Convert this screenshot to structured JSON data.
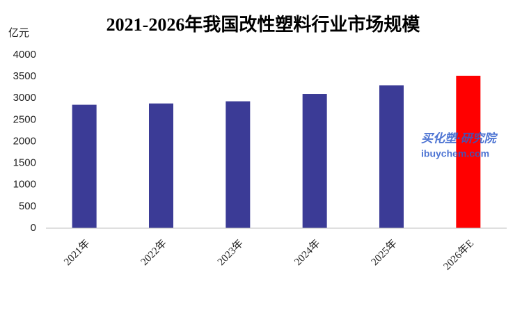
{
  "chart_data": {
    "type": "bar",
    "title": "2021-2026年我国改性塑料行业市场规模",
    "y_label": "亿元",
    "categories": [
      "2021年",
      "2022年",
      "2023年",
      "2024年",
      "2025年",
      "2026年E"
    ],
    "values": [
      2850,
      2880,
      2930,
      3100,
      3300,
      3520
    ],
    "colors": [
      "#3b3b96",
      "#3b3b96",
      "#3b3b96",
      "#3b3b96",
      "#3b3b96",
      "#ff0000"
    ],
    "ylim": [
      0,
      4000
    ],
    "yticks": [
      0,
      500,
      1000,
      1500,
      2000,
      2500,
      3000,
      3500,
      4000
    ],
    "grid": false,
    "watermark": [
      "买化塑·研究院",
      "ibuychem.com"
    ]
  }
}
